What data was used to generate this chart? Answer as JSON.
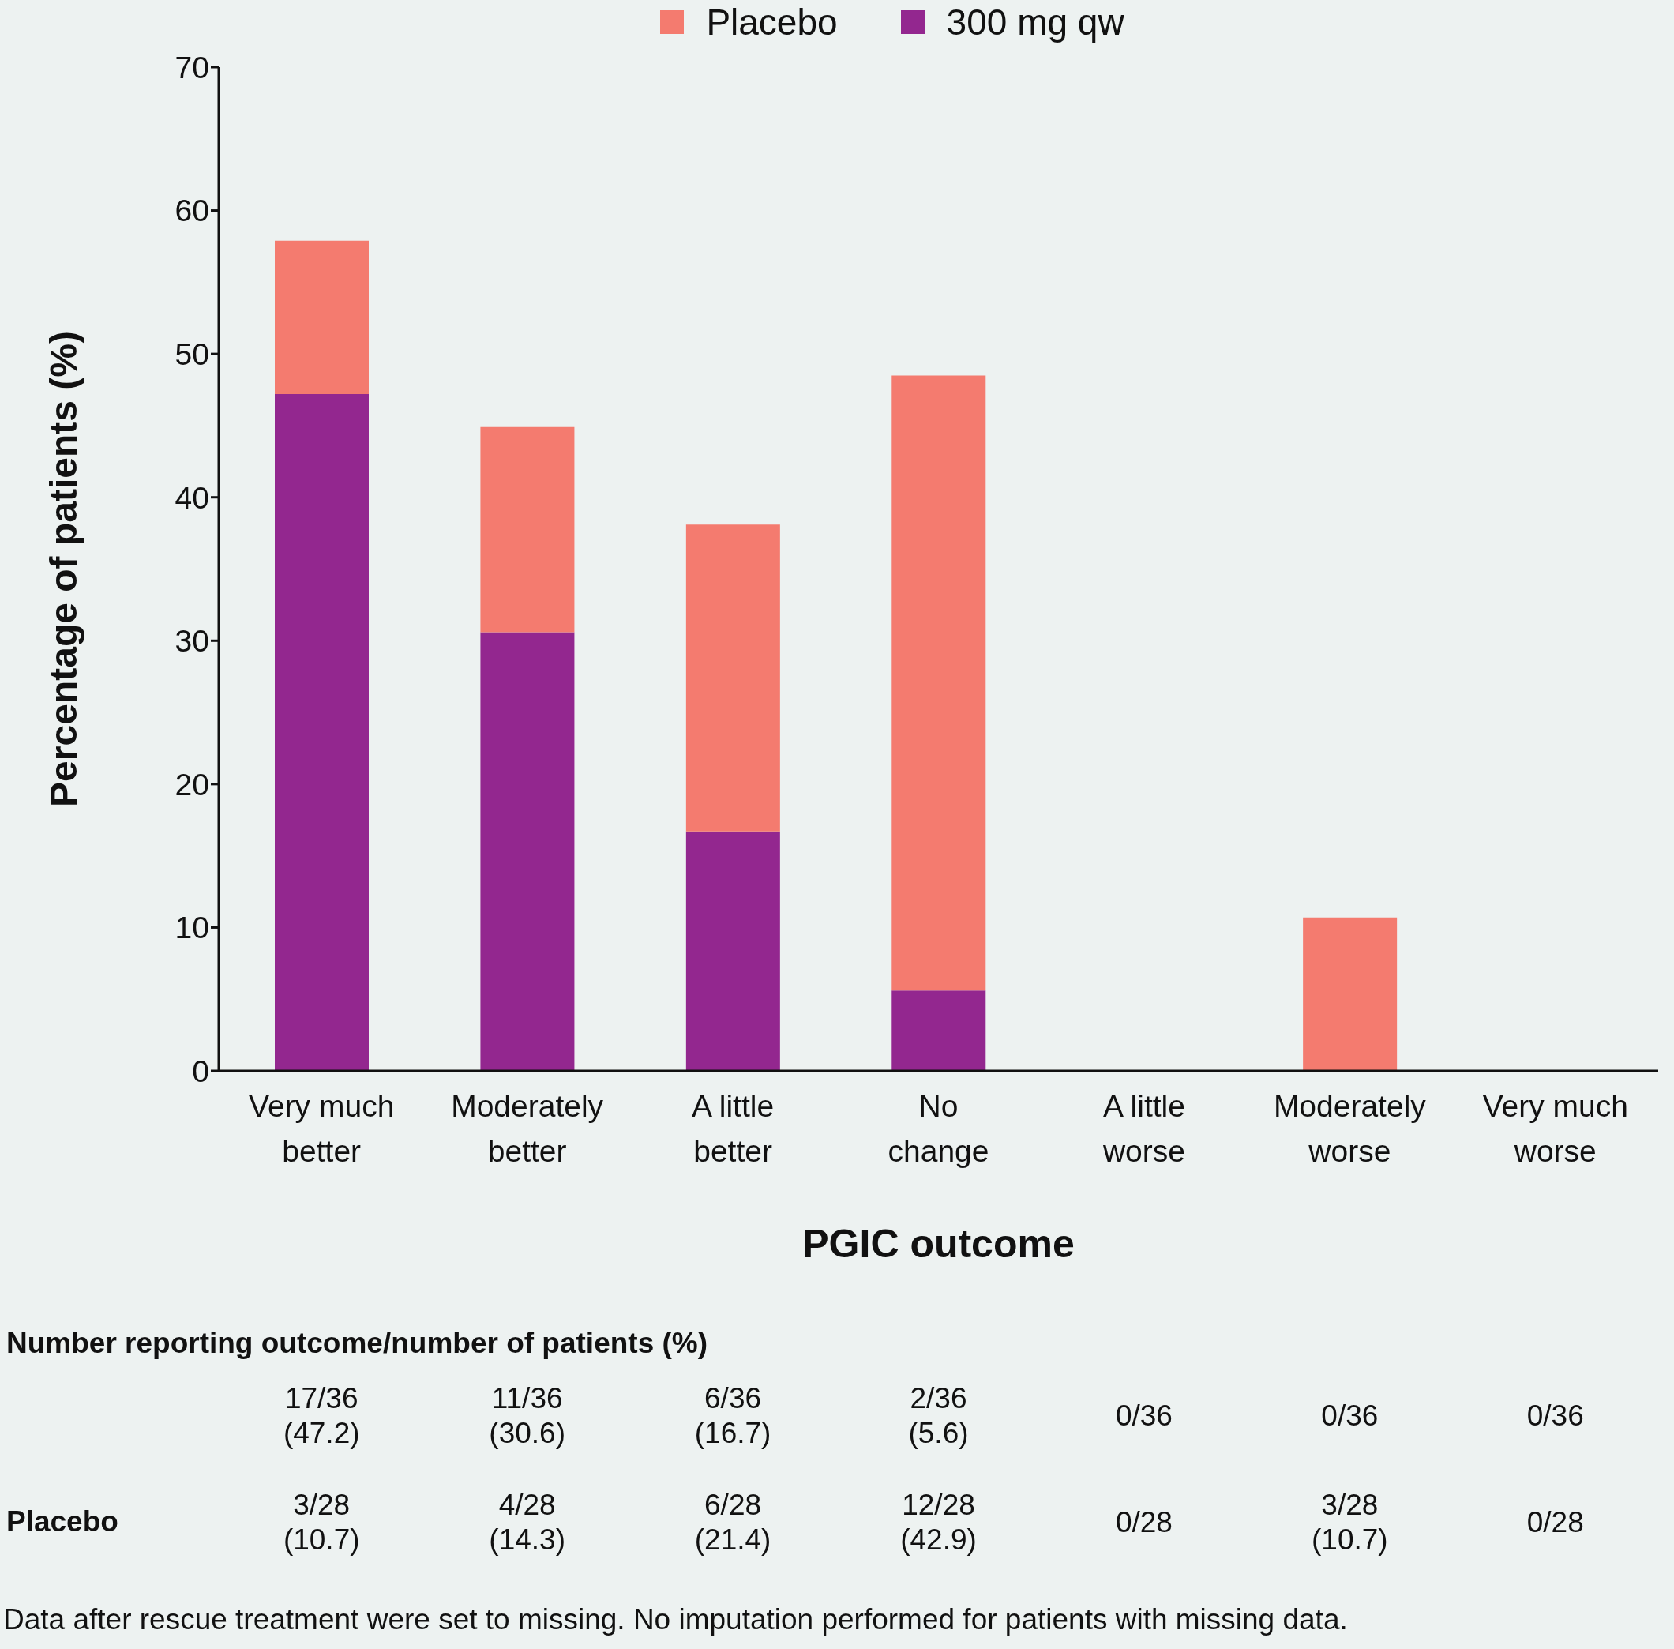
{
  "chart_data": {
    "type": "bar",
    "stacked": true,
    "xlabel": "PGIC outcome",
    "ylabel": "Percentage of patients (%)",
    "categories": [
      "Very much better",
      "Moderately better",
      "A little better",
      "No change",
      "A little worse",
      "Moderately worse",
      "Very much worse"
    ],
    "series": [
      {
        "name": "300 mg qw",
        "color": "#93278f",
        "values": [
          47.2,
          30.6,
          16.7,
          5.6,
          0,
          0,
          0
        ]
      },
      {
        "name": "Placebo",
        "color": "#f47b6f",
        "values": [
          10.7,
          14.3,
          21.4,
          42.9,
          0,
          10.7,
          0
        ]
      }
    ],
    "ylim": [
      0,
      70
    ],
    "yticks": [
      0,
      10,
      20,
      30,
      40,
      50,
      60,
      70
    ],
    "grid": false,
    "legend": "top",
    "annotations": [
      "Number reporting outcome/number of patients (%)",
      "Placebo",
      "17/36 (47.2)",
      "11/36 (30.6)",
      "6/36 (16.7)",
      "2/36 (5.6)",
      "0/36",
      "0/36",
      "0/36",
      "3/28 (10.7)",
      "4/28 (14.3)",
      "6/28 (21.4)",
      "12/28 (42.9)",
      "0/28",
      "3/28 (10.7)",
      "0/28",
      "Data after rescue treatment were set to missing. No imputation performed for patients with missing data."
    ]
  }
}
